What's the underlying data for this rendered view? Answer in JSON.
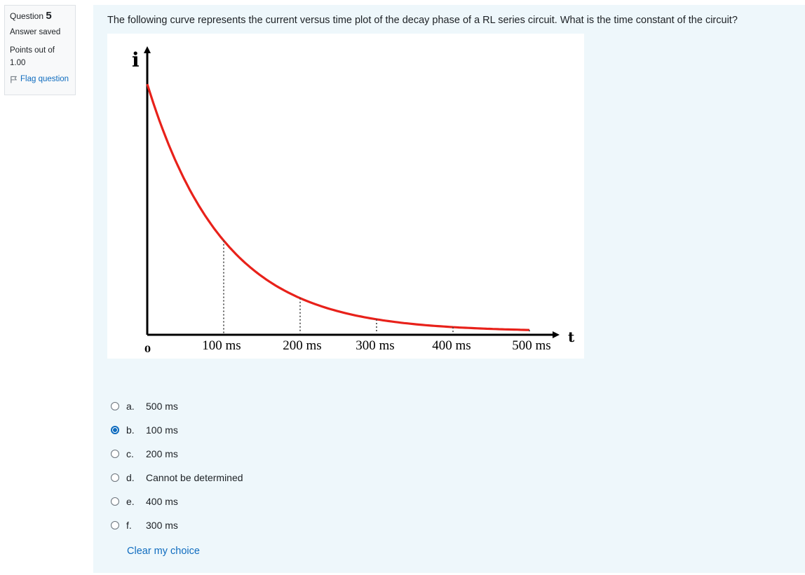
{
  "question_info": {
    "label": "Question",
    "number": "5",
    "state": "Answer saved",
    "grade_line1": "Points out of",
    "grade_line2": "1.00",
    "flag_label": "Flag question"
  },
  "question": {
    "text": "The following curve represents the current versus time plot of the decay phase of a RL series circuit. What is the time constant of the circuit?"
  },
  "figure": {
    "y_axis_label": "i",
    "x_axis_label": "t",
    "origin_label": "0",
    "tick_labels": [
      "100 ms",
      "200 ms",
      "300 ms",
      "400 ms",
      "500 ms"
    ],
    "curve_color": "#e8211a"
  },
  "chart_data": {
    "type": "line",
    "xlabel": "t",
    "ylabel": "i",
    "x": [
      0,
      50,
      100,
      150,
      200,
      250,
      300,
      350,
      400,
      450,
      500
    ],
    "values": [
      1.0,
      0.58,
      0.34,
      0.22,
      0.14,
      0.09,
      0.06,
      0.04,
      0.03,
      0.02,
      0.015
    ],
    "xlim": [
      0,
      520
    ],
    "ylim": [
      0,
      1.0
    ],
    "dotted_markers_x": [
      100,
      200,
      300,
      400,
      500
    ]
  },
  "answers": [
    {
      "letter": "a.",
      "text": "500 ms",
      "checked": false
    },
    {
      "letter": "b.",
      "text": "100 ms",
      "checked": true
    },
    {
      "letter": "c.",
      "text": "200 ms",
      "checked": false
    },
    {
      "letter": "d.",
      "text": "Cannot be determined",
      "checked": false
    },
    {
      "letter": "e.",
      "text": "400 ms",
      "checked": false
    },
    {
      "letter": "f.",
      "text": "300 ms",
      "checked": false
    }
  ],
  "clear_label": "Clear my choice",
  "colors": {
    "link": "#0f6cbf",
    "panel": "#eef7fb"
  }
}
